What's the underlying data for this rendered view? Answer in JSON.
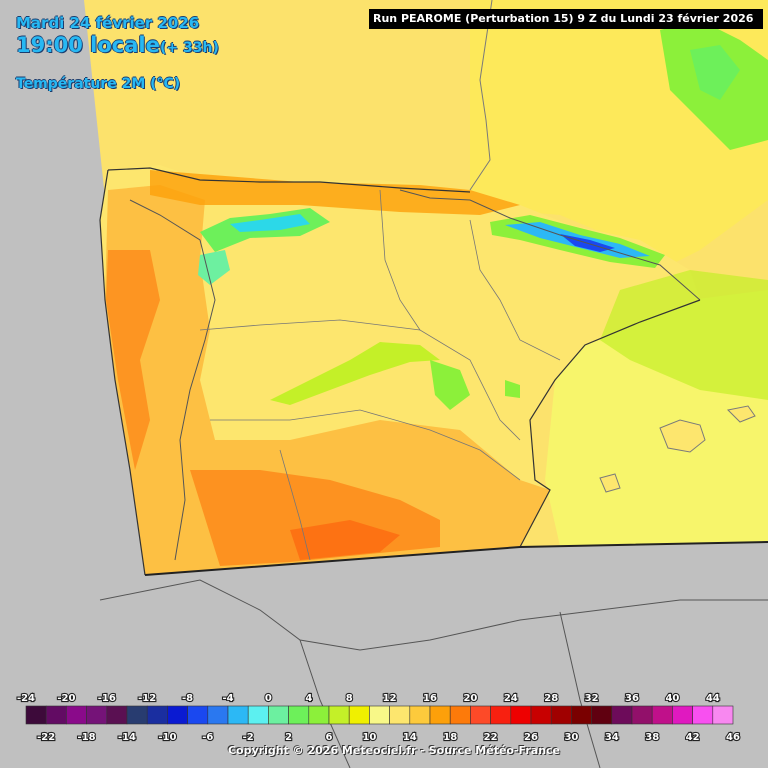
{
  "header": {
    "date": "Mardi 24 février 2026",
    "time_local": "19:00 locale",
    "lead_time": "(+ 33h)",
    "variable": "Température 2M (°C)",
    "run_info": "Run PEAROME (Perturbation 15) 9 Z du Lundi 23 février 2026"
  },
  "legend": {
    "top_labels": [
      "-24",
      "-20",
      "-16",
      "-12",
      "-8",
      "-4",
      "0",
      "4",
      "8",
      "12",
      "16",
      "20",
      "24",
      "28",
      "32",
      "36",
      "40",
      "44"
    ],
    "bottom_labels": [
      "-22",
      "-18",
      "-14",
      "-10",
      "-6",
      "-2",
      "2",
      "6",
      "10",
      "14",
      "18",
      "22",
      "26",
      "30",
      "34",
      "38",
      "42",
      "46"
    ],
    "colors": [
      "#3d0a3a",
      "#620b63",
      "#8a0a8a",
      "#751378",
      "#5a1052",
      "#283c70",
      "#1a2ea0",
      "#0a1ad2",
      "#1a48f0",
      "#2a78f0",
      "#2cb8f5",
      "#5cf0f0",
      "#6cf0a0",
      "#6df05a",
      "#8cf03a",
      "#c4f028",
      "#f0f000",
      "#f8f888",
      "#fde66e",
      "#fdca3c",
      "#fda00a",
      "#fd7a0a",
      "#fd4a28",
      "#f82010",
      "#ee0000",
      "#c80000",
      "#a00000",
      "#7a0000",
      "#600010",
      "#6d0b5a",
      "#92106a",
      "#c0108a",
      "#e019c0",
      "#f850f0",
      "#f888f0"
    ]
  },
  "map": {
    "sea_color": "#fce26c",
    "outside_color": "#c0c0c0",
    "land_base_color": "#fde66e",
    "warm_color": "#fdb83c",
    "hot_color": "#fd8a1a",
    "cool_color": "#c4f028",
    "cold_color": "#6df05a",
    "very_cold_color": "#2cb8f5"
  },
  "copyright": "Copyright © 2026 Meteociel.fr - Source Météo-France"
}
